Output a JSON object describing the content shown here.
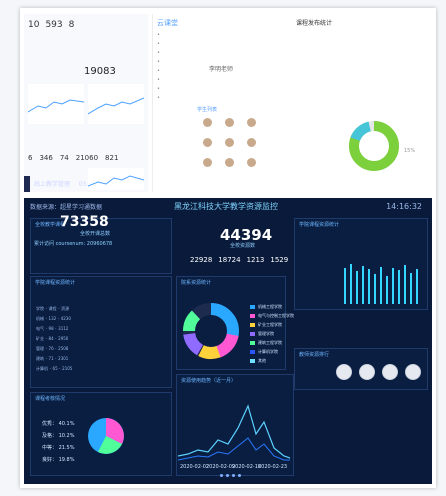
{
  "top_left": {
    "app_title": "线上教学管理",
    "date_fragment": "03.01",
    "stats": [
      "10",
      "593",
      "8"
    ],
    "big_number": "19083",
    "bottom_stats": [
      "6",
      "346",
      "74",
      "21060",
      "821"
    ]
  },
  "top_middle": {
    "logo": "云课堂",
    "profile_name": "李明老师",
    "tabs": [
      "学生列表"
    ]
  },
  "top_right": {
    "header": "课程发布统计",
    "donut_pct": "15%"
  },
  "dashboard": {
    "source": "数据来源：超星学习通数据",
    "title": "黑龙江科技大学教学资源监控",
    "time": "14:16:32",
    "left_kpi_label": "全校教学课程",
    "left_kpi_value": "73358",
    "left_kpi_sub": "全校开课总数",
    "left_line": "累计访问 coursenum: 20960678",
    "center_kpi_value": "44394",
    "center_kpi_sub": "全校资源数",
    "center_nums": [
      "22928",
      "18724",
      "1213",
      "1529"
    ],
    "donut_title": "院系资源统计",
    "legend_items": [
      "机械工程学院",
      "电气与控制工程学院",
      "矿业工程学院",
      "管理学院",
      "建筑工程学院",
      "计算机学院",
      "其他"
    ],
    "right_title": "学院课程资源统计",
    "photos_title": "教师资源排行",
    "line_title": "资源使用趋势（近一月）",
    "pie_labels": [
      "优秀：",
      "及格：",
      "中等：",
      "良好："
    ],
    "pie_pct": [
      "40.1%",
      "10.2%",
      "21.5%",
      "19.8%"
    ],
    "dates": [
      "2020-02-02",
      "2020-02-09",
      "2020-02-16",
      "2020-02-23",
      "2020-03-01"
    ]
  }
}
